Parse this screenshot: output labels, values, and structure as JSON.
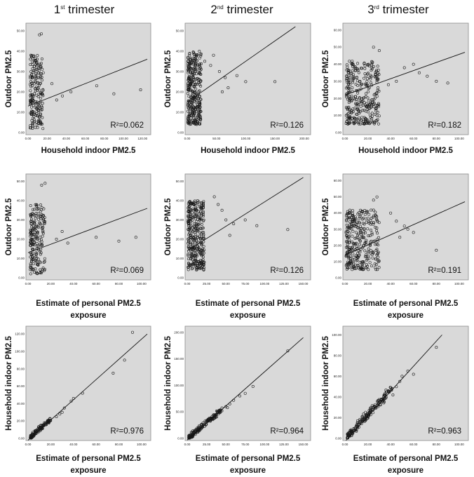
{
  "figure": {
    "column_titles": [
      {
        "base": "1",
        "sup": "st",
        "rest": " trimester"
      },
      {
        "base": "2",
        "sup": "nd",
        "rest": " trimester"
      },
      {
        "base": "3",
        "sup": "rd",
        "rest": " trimester"
      }
    ]
  },
  "chart_data": [
    {
      "type": "scatter",
      "id": "r1c1",
      "xlabel": [
        "Household indoor PM2.5"
      ],
      "ylabel": "Outdoor PM2.5",
      "xticks": [
        "0.00",
        "20.00",
        "40.00",
        "60.00",
        "80.00",
        "100.00",
        "120.00"
      ],
      "xlim": [
        0,
        125
      ],
      "yticks": [
        "0.00",
        "10.00",
        "20.00",
        "30.00",
        "40.00",
        "50.00"
      ],
      "ylim": [
        0,
        52
      ],
      "fit": {
        "x": [
          0,
          125
        ],
        "y": [
          13,
          36
        ]
      },
      "r2_label": "R²=0.062",
      "r2": 0.062,
      "cluster": {
        "n": 200,
        "xmin": 2,
        "xmax": 16,
        "ymin": 2,
        "ymax": 38
      },
      "points": [
        [
          12,
          48
        ],
        [
          14,
          48.5
        ],
        [
          45,
          20
        ],
        [
          72,
          23
        ],
        [
          90,
          19
        ],
        [
          118,
          21
        ],
        [
          36,
          18
        ],
        [
          25,
          24
        ],
        [
          30,
          16
        ]
      ]
    },
    {
      "type": "scatter",
      "id": "r1c2",
      "xlabel": [
        "Household indoor PM2.5"
      ],
      "ylabel": "Outdoor PM2.5",
      "xticks": [
        "0.00",
        "50.00",
        "100.00",
        "150.00",
        "200.00"
      ],
      "xlim": [
        0,
        205
      ],
      "yticks": [
        "0.00",
        "10.00",
        "20.00",
        "30.00",
        "40.00",
        "50.00"
      ],
      "ylim": [
        0,
        52
      ],
      "fit": {
        "x": [
          0,
          185
        ],
        "y": [
          15,
          52
        ]
      },
      "r2_label": "R²=0.126",
      "r2": 0.126,
      "cluster": {
        "n": 340,
        "xmin": 1,
        "xmax": 24,
        "ymin": 4,
        "ymax": 40
      },
      "points": [
        [
          55,
          30
        ],
        [
          65,
          27
        ],
        [
          85,
          28
        ],
        [
          100,
          25
        ],
        [
          150,
          25
        ],
        [
          30,
          35
        ],
        [
          40,
          33
        ],
        [
          70,
          22
        ],
        [
          45,
          38
        ],
        [
          60,
          20
        ]
      ]
    },
    {
      "type": "scatter",
      "id": "r1c3",
      "xlabel": [
        "Household indoor PM2.5"
      ],
      "ylabel": "Outdoor PM2.5",
      "xticks": [
        "0.00",
        "20.00",
        "40.00",
        "60.00",
        "80.00",
        "100.00"
      ],
      "xlim": [
        0,
        105
      ],
      "yticks": [
        "0.00",
        "10.00",
        "20.00",
        "30.00",
        "40.00",
        "50.00",
        "60.00"
      ],
      "ylim": [
        0,
        62
      ],
      "fit": {
        "x": [
          0,
          105
        ],
        "y": [
          22,
          47
        ]
      },
      "r2_label": "R²=0.182",
      "r2": 0.182,
      "cluster": {
        "n": 330,
        "xmin": 1,
        "xmax": 30,
        "ymin": 5,
        "ymax": 42
      },
      "points": [
        [
          52,
          38
        ],
        [
          60,
          40
        ],
        [
          65,
          35
        ],
        [
          72,
          33
        ],
        [
          80,
          30
        ],
        [
          90,
          29
        ],
        [
          25,
          50
        ],
        [
          30,
          48
        ],
        [
          45,
          30
        ],
        [
          38,
          28
        ]
      ]
    },
    {
      "type": "scatter",
      "id": "r2c1",
      "xlabel": [
        "Estimate of personal PM2.5",
        "exposure"
      ],
      "ylabel": "Outdoor PM2.5",
      "xticks": [
        "0.00",
        "20.00",
        "40.00",
        "60.00",
        "80.00",
        "100.00"
      ],
      "xlim": [
        0,
        105
      ],
      "yticks": [
        "0.00",
        "10.00",
        "20.00",
        "30.00",
        "40.00",
        "50.00"
      ],
      "ylim": [
        0,
        52
      ],
      "fit": {
        "x": [
          0,
          105
        ],
        "y": [
          13,
          36
        ]
      },
      "r2_label": "R²=0.069",
      "r2": 0.069,
      "cluster": {
        "n": 200,
        "xmin": 2,
        "xmax": 15,
        "ymin": 2,
        "ymax": 38
      },
      "points": [
        [
          12,
          48
        ],
        [
          15,
          49
        ],
        [
          60,
          21
        ],
        [
          80,
          19
        ],
        [
          95,
          21
        ],
        [
          30,
          24
        ],
        [
          25,
          20
        ],
        [
          35,
          18
        ]
      ]
    },
    {
      "type": "scatter",
      "id": "r2c2",
      "xlabel": [
        "Estimate of personal PM2.5",
        "exposure"
      ],
      "ylabel": "Outdoor PM2.5",
      "xticks": [
        "0.00",
        "25.00",
        "50.00",
        "75.00",
        "100.00",
        "125.00",
        "150.00"
      ],
      "xlim": [
        0,
        155
      ],
      "yticks": [
        "0.00",
        "10.00",
        "20.00",
        "30.00",
        "40.00",
        "50.00"
      ],
      "ylim": [
        0,
        52
      ],
      "fit": {
        "x": [
          0,
          150
        ],
        "y": [
          14,
          52
        ]
      },
      "r2_label": "R²=0.126",
      "r2": 0.126,
      "cluster": {
        "n": 340,
        "xmin": 1,
        "xmax": 22,
        "ymin": 4,
        "ymax": 40
      },
      "points": [
        [
          40,
          38
        ],
        [
          50,
          30
        ],
        [
          60,
          28
        ],
        [
          75,
          30
        ],
        [
          90,
          27
        ],
        [
          130,
          25
        ],
        [
          35,
          42
        ],
        [
          45,
          35
        ],
        [
          55,
          22
        ]
      ]
    },
    {
      "type": "scatter",
      "id": "r2c3",
      "xlabel": [
        "Estimate of personal PM2.5",
        "exposure"
      ],
      "ylabel": "Outdoor PM2.5",
      "xticks": [
        "0.00",
        "20.00",
        "40.00",
        "60.00",
        "80.00",
        "100.00"
      ],
      "xlim": [
        0,
        105
      ],
      "yticks": [
        "0.00",
        "10.00",
        "20.00",
        "30.00",
        "40.00",
        "50.00",
        "60.00"
      ],
      "ylim": [
        0,
        62
      ],
      "fit": {
        "x": [
          0,
          105
        ],
        "y": [
          14,
          47
        ]
      },
      "r2_label": "R²=0.191",
      "r2": 0.191,
      "cluster": {
        "n": 330,
        "xmin": 1,
        "xmax": 30,
        "ymin": 5,
        "ymax": 42
      },
      "points": [
        [
          25,
          48
        ],
        [
          28,
          50
        ],
        [
          40,
          40
        ],
        [
          45,
          35
        ],
        [
          55,
          30
        ],
        [
          60,
          28
        ],
        [
          80,
          17
        ],
        [
          48,
          25
        ],
        [
          52,
          32
        ]
      ]
    },
    {
      "type": "scatter",
      "id": "r3c1",
      "xlabel": [
        "Estimate of personal PM2.5",
        "exposure"
      ],
      "ylabel": "Household indoor PM2.5",
      "xticks": [
        "0.00",
        "20.00",
        "40.00",
        "60.00",
        "80.00",
        "100.00"
      ],
      "xlim": [
        0,
        105
      ],
      "yticks": [
        "0.00",
        "20.00",
        "40.00",
        "60.00",
        "80.00",
        "100.00",
        "120.00"
      ],
      "ylim": [
        0,
        125
      ],
      "fit": {
        "x": [
          0,
          105
        ],
        "y": [
          -2,
          120
        ]
      },
      "r2_label": "R²=0.976",
      "r2": 0.976,
      "line_cluster": {
        "n": 130,
        "xmin": 2,
        "xmax": 20,
        "slope": 1.15,
        "intercept": -1,
        "noise": 2
      },
      "points": [
        [
          28,
          28
        ],
        [
          32,
          35
        ],
        [
          38,
          43
        ],
        [
          40,
          46
        ],
        [
          48,
          52
        ],
        [
          75,
          75
        ],
        [
          85,
          90
        ],
        [
          92,
          122
        ],
        [
          25,
          25
        ],
        [
          30,
          30
        ]
      ]
    },
    {
      "type": "scatter",
      "id": "r3c2",
      "xlabel": [
        "Estimate of personal PM2.5",
        "exposure"
      ],
      "ylabel": "Household indoor PM2.5",
      "xticks": [
        "0.00",
        "25.00",
        "50.00",
        "75.00",
        "100.00",
        "125.00",
        "150.00"
      ],
      "xlim": [
        0,
        155
      ],
      "yticks": [
        "0.00",
        "50.00",
        "100.00",
        "150.00",
        "200.00"
      ],
      "ylim": [
        0,
        205
      ],
      "fit": {
        "x": [
          0,
          150
        ],
        "y": [
          -3,
          190
        ]
      },
      "r2_label": "R²=0.964",
      "r2": 0.964,
      "line_cluster": {
        "n": 180,
        "xmin": 2,
        "xmax": 45,
        "slope": 1.25,
        "intercept": -1,
        "noise": 4
      },
      "points": [
        [
          50,
          60
        ],
        [
          55,
          65
        ],
        [
          60,
          72
        ],
        [
          68,
          80
        ],
        [
          75,
          85
        ],
        [
          85,
          98
        ],
        [
          130,
          165
        ],
        [
          52,
          58
        ]
      ]
    },
    {
      "type": "scatter",
      "id": "r3c3",
      "xlabel": [
        "Estimate of personal PM2.5",
        "exposure"
      ],
      "ylabel": "Household indoor PM2.5",
      "xticks": [
        "0.00",
        "20.00",
        "40.00",
        "60.00",
        "80.00",
        "100.00"
      ],
      "xlim": [
        0,
        105
      ],
      "yticks": [
        "0.00",
        "20.00",
        "40.00",
        "60.00",
        "80.00",
        "100.00"
      ],
      "ylim": [
        0,
        105
      ],
      "fit": {
        "x": [
          0,
          85
        ],
        "y": [
          -3,
          100
        ]
      },
      "r2_label": "R²=0.963",
      "r2": 0.963,
      "line_cluster": {
        "n": 190,
        "xmin": 2,
        "xmax": 42,
        "slope": 1.2,
        "intercept": -1,
        "noise": 3
      },
      "points": [
        [
          45,
          50
        ],
        [
          48,
          55
        ],
        [
          50,
          60
        ],
        [
          55,
          65
        ],
        [
          60,
          62
        ],
        [
          80,
          88
        ],
        [
          42,
          42
        ],
        [
          38,
          46
        ]
      ]
    }
  ]
}
